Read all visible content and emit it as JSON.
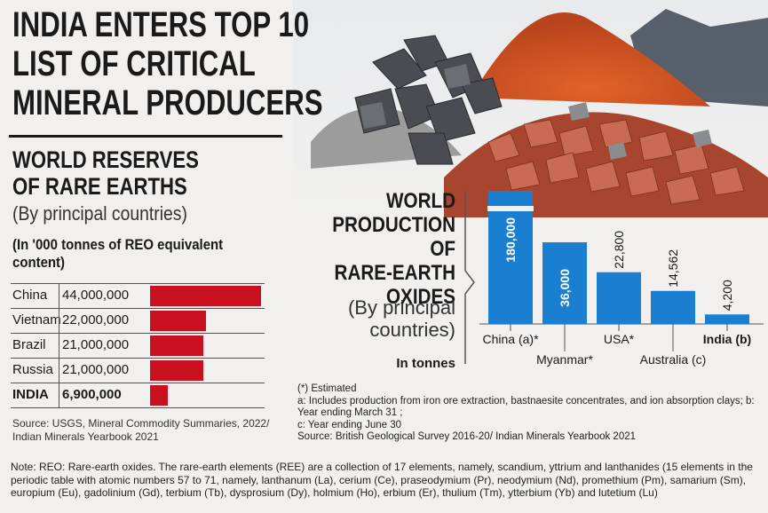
{
  "headline": [
    "INDIA ENTERS TOP 10",
    "LIST OF CRITICAL",
    "MINERAL PRODUCERS"
  ],
  "reserves": {
    "title": [
      "WORLD RESERVES",
      "OF RARE EARTHS"
    ],
    "subtitle": "(By principal countries)",
    "unit": "(In '000 tonnes of REO equivalent content)",
    "source": "Source: USGS, Mineral Commodity Summaries, 2022/ Indian Minerals Yearbook 2021",
    "bar_color": "#c9101e"
  },
  "production": {
    "title": [
      "WORLD",
      "PRODUCTION OF",
      "RARE-EARTH",
      "OXIDES"
    ],
    "subtitle": [
      "(By principal",
      "countries)"
    ],
    "unit": "In tonnes",
    "bar_color": "#1a7fd0"
  },
  "chart_data": [
    {
      "type": "bar",
      "orientation": "horizontal",
      "categories": [
        "China",
        "Vietnam",
        "Brazil",
        "Russia",
        "INDIA"
      ],
      "values": [
        44000000,
        22000000,
        21000000,
        21000000,
        6900000
      ],
      "value_labels": [
        "44,000,000",
        "22,000,000",
        "21,000,000",
        "21,000,000",
        "6,900,000"
      ],
      "emphasis": "INDIA"
    },
    {
      "type": "bar",
      "categories": [
        "China (a)*",
        "Myanmar*",
        "USA*",
        "Australia (c)",
        "India (b)"
      ],
      "values": [
        180000,
        36000,
        22800,
        14562,
        4200
      ],
      "value_labels": [
        "180,000",
        "36,000",
        "22,800",
        "14,562",
        "4,200"
      ],
      "axis_break": true,
      "emphasis": "India (b)"
    }
  ],
  "notes": [
    "(*) Estimated",
    "a: Includes production from iron ore extraction, bastnaesite concentrates, and ion absorption clays; b: Year ending March 31 ;",
    "c: Year ending June 30",
    "Source: British Geological Survey 2016-20/ Indian Minerals Yearbook 2021"
  ],
  "bottom_note": "Note: REO: Rare-earth oxides. The rare-earth elements (REE) are a collection of 17 elements, namely, scandium, yttrium and lanthanides (15 elements in the periodic table with atomic numbers 57 to 71, namely, lanthanum (La), cerium (Ce), praseodymium (Pr), neodymium (Nd), promethium (Pm), samarium (Sm), europium (Eu), gadolinium (Gd), terbium (Tb), dysprosium (Dy), holmium (Ho), erbium (Er), thulium (Tm), ytterbium (Yb) and lutetium (Lu)"
}
